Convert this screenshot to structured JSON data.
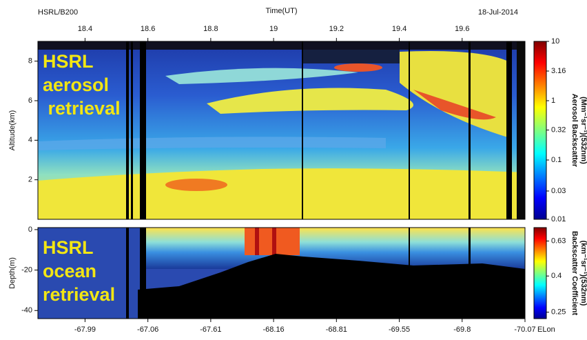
{
  "header": {
    "flight": "HSRL/B200",
    "date": "18-Jul-2014"
  },
  "chart_data": [
    {
      "type": "heatmap",
      "xlabel": "Time(UT)",
      "ylabel": "Altitude(km)",
      "annotation": [
        "HSRL",
        "aerosol",
        " retrieval"
      ],
      "xlim": [
        18.25,
        19.8
      ],
      "xticks": [
        18.4,
        18.6,
        18.8,
        19,
        19.2,
        19.4,
        19.6
      ],
      "ylim": [
        0,
        9
      ],
      "yticks": [
        2,
        4,
        6,
        8
      ],
      "colorbar": {
        "label": [
          "Aerosol Backscatter",
          "(Mm⁻¹sr⁻¹)(532nm)"
        ],
        "scale": "log",
        "colormap": "jet",
        "lim": [
          0.01,
          10
        ],
        "ticks": [
          10,
          3.16,
          1,
          0.32,
          0.1,
          0.03,
          0.01
        ]
      }
    },
    {
      "type": "heatmap",
      "xlabel": "ELon",
      "ylabel": "Depth(m)",
      "annotation": [
        "HSRL",
        "ocean",
        "retrieval"
      ],
      "xlim": [
        18.25,
        19.8
      ],
      "xticks": [
        {
          "value": 18.4,
          "label": "-67.99"
        },
        {
          "value": 18.6,
          "label": "-67.06"
        },
        {
          "value": 18.8,
          "label": "-67.61"
        },
        {
          "value": 19,
          "label": "-68.16"
        },
        {
          "value": 19.2,
          "label": "-68.81"
        },
        {
          "value": 19.4,
          "label": "-69.55"
        },
        {
          "value": 19.6,
          "label": "-69.8"
        },
        {
          "value": 19.8,
          "label": "-70.07"
        }
      ],
      "ylim": [
        -44,
        1
      ],
      "yticks": [
        0,
        -20,
        -40
      ],
      "colorbar": {
        "label": [
          "Backscatter Coefficient",
          "(km⁻¹sr⁻¹)(532nm)"
        ],
        "scale": "log",
        "colormap": "jet",
        "lim": [
          0.23,
          0.75
        ],
        "ticks": [
          0.63,
          0.4,
          0.25
        ]
      }
    }
  ]
}
